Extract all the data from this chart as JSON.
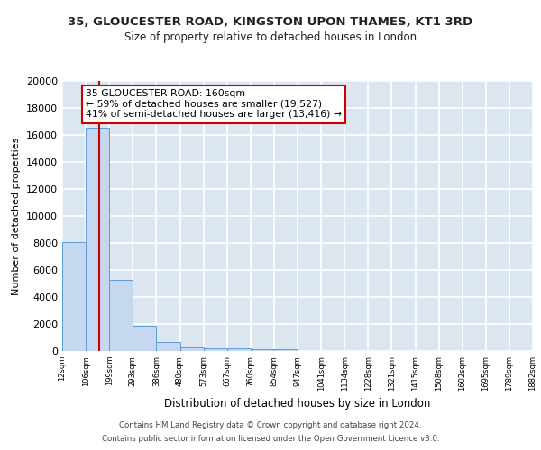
{
  "title1": "35, GLOUCESTER ROAD, KINGSTON UPON THAMES, KT1 3RD",
  "title2": "Size of property relative to detached houses in London",
  "xlabel": "Distribution of detached houses by size in London",
  "ylabel": "Number of detached properties",
  "bin_labels": [
    "12sqm",
    "106sqm",
    "199sqm",
    "293sqm",
    "386sqm",
    "480sqm",
    "573sqm",
    "667sqm",
    "760sqm",
    "854sqm",
    "947sqm",
    "1041sqm",
    "1134sqm",
    "1228sqm",
    "1321sqm",
    "1415sqm",
    "1508sqm",
    "1602sqm",
    "1695sqm",
    "1789sqm",
    "1882sqm"
  ],
  "bar_heights": [
    8100,
    16500,
    5300,
    1850,
    700,
    300,
    200,
    200,
    150,
    150,
    0,
    0,
    0,
    0,
    0,
    0,
    0,
    0,
    0,
    0
  ],
  "bar_color": "#c5d8ef",
  "bar_edge_color": "#5b9bd5",
  "background_color": "#dce6f1",
  "grid_color": "#ffffff",
  "vline_color": "#cc0000",
  "ylim": [
    0,
    20000
  ],
  "yticks": [
    0,
    2000,
    4000,
    6000,
    8000,
    10000,
    12000,
    14000,
    16000,
    18000,
    20000
  ],
  "annotation_text": "35 GLOUCESTER ROAD: 160sqm\n← 59% of detached houses are smaller (19,527)\n41% of semi-detached houses are larger (13,416) →",
  "annotation_box_color": "#ffffff",
  "annotation_box_edge": "#cc0000",
  "footer1": "Contains HM Land Registry data © Crown copyright and database right 2024.",
  "footer2": "Contains public sector information licensed under the Open Government Licence v3.0."
}
